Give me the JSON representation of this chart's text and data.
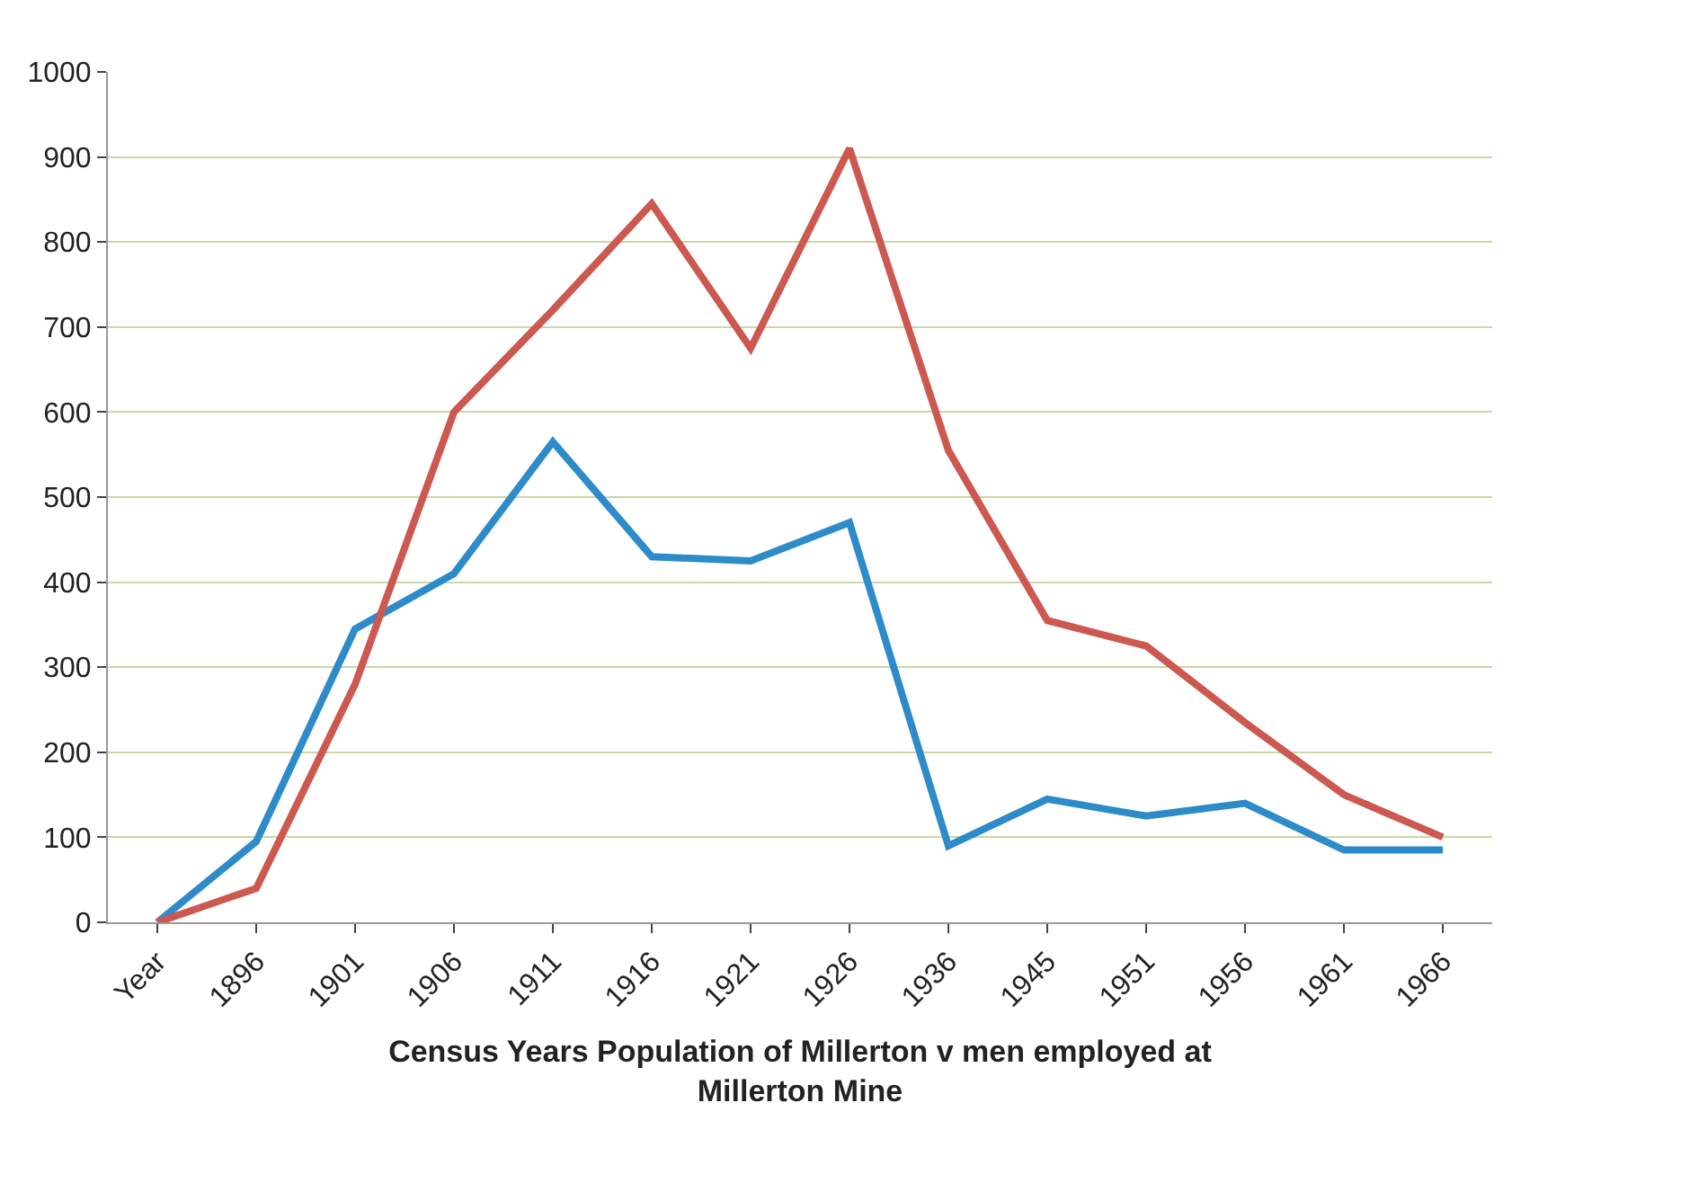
{
  "chart_data": {
    "type": "line",
    "xlabel": "Census Years Population  of Millerton v men employed at Millerton Mine",
    "categories": [
      "Year",
      "1896",
      "1901",
      "1906",
      "1911",
      "1916",
      "1921",
      "1926",
      "1936",
      "1945",
      "1951",
      "1956",
      "1961",
      "1966"
    ],
    "series": [
      {
        "color": "#2e8bc9",
        "values": [
          0,
          95,
          345,
          410,
          565,
          430,
          425,
          470,
          90,
          145,
          125,
          140,
          85,
          85
        ]
      },
      {
        "color": "#cc5850",
        "values": [
          0,
          40,
          280,
          600,
          720,
          845,
          675,
          910,
          555,
          355,
          325,
          235,
          150,
          100
        ]
      }
    ],
    "ylim": [
      0,
      1000
    ],
    "yticks": [
      0,
      100,
      200,
      300,
      400,
      500,
      600,
      700,
      800,
      900,
      1000
    ],
    "grid": "y",
    "marker": "none",
    "line_style": "solid"
  }
}
